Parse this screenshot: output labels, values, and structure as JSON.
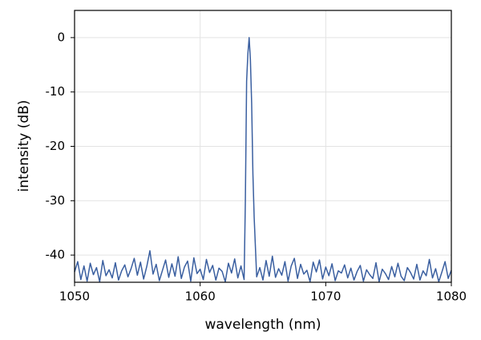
{
  "chart_data": {
    "type": "line",
    "xlabel": "wavelength (nm)",
    "ylabel": "intensity (dB)",
    "xlim": [
      1050,
      1080
    ],
    "xticks": [
      1050,
      1060,
      1070,
      1080
    ],
    "ylim": [
      -45,
      5
    ],
    "yticks": [
      0,
      -10,
      -20,
      -30,
      -40
    ],
    "grid": true,
    "x": [
      1050,
      1050.25,
      1050.5,
      1050.75,
      1051,
      1051.25,
      1051.5,
      1051.75,
      1052,
      1052.25,
      1052.5,
      1052.75,
      1053,
      1053.25,
      1053.5,
      1053.75,
      1054,
      1054.25,
      1054.5,
      1054.75,
      1055,
      1055.25,
      1055.5,
      1055.75,
      1056,
      1056.25,
      1056.5,
      1056.75,
      1057,
      1057.25,
      1057.5,
      1057.75,
      1058,
      1058.25,
      1058.5,
      1058.75,
      1059,
      1059.25,
      1059.5,
      1059.75,
      1060,
      1060.25,
      1060.5,
      1060.75,
      1061,
      1061.25,
      1061.5,
      1061.75,
      1062,
      1062.25,
      1062.5,
      1062.75,
      1063,
      1063.25,
      1063.5,
      1063.6,
      1063.7,
      1063.8,
      1063.9,
      1064,
      1064.1,
      1064.2,
      1064.3,
      1064.5,
      1064.75,
      1065,
      1065.25,
      1065.5,
      1065.75,
      1066,
      1066.25,
      1066.5,
      1066.75,
      1067,
      1067.25,
      1067.5,
      1067.75,
      1068,
      1068.25,
      1068.5,
      1068.75,
      1069,
      1069.25,
      1069.5,
      1069.75,
      1070,
      1070.25,
      1070.5,
      1070.75,
      1071,
      1071.25,
      1071.5,
      1071.75,
      1072,
      1072.25,
      1072.5,
      1072.75,
      1073,
      1073.25,
      1073.5,
      1073.75,
      1074,
      1074.25,
      1074.5,
      1074.75,
      1075,
      1075.25,
      1075.5,
      1075.75,
      1076,
      1076.25,
      1076.5,
      1076.75,
      1077,
      1077.25,
      1077.5,
      1077.75,
      1078,
      1078.25,
      1078.5,
      1078.75,
      1079,
      1079.25,
      1079.5,
      1079.75,
      1080
    ],
    "series": [
      {
        "color": "#3a5fa0",
        "values": [
          -43.1,
          -41.2,
          -44.5,
          -42.0,
          -44.8,
          -41.5,
          -43.6,
          -42.3,
          -44.9,
          -41.0,
          -43.8,
          -42.7,
          -44.2,
          -41.4,
          -44.6,
          -42.9,
          -41.8,
          -44.0,
          -42.5,
          -40.6,
          -43.7,
          -41.3,
          -44.4,
          -42.1,
          -39.2,
          -43.5,
          -41.7,
          -44.7,
          -42.8,
          -40.9,
          -44.1,
          -41.6,
          -43.9,
          -40.3,
          -44.3,
          -42.2,
          -41.1,
          -44.8,
          -40.5,
          -43.4,
          -42.6,
          -44.5,
          -40.8,
          -43.2,
          -41.9,
          -44.6,
          -42.4,
          -43.0,
          -44.9,
          -41.5,
          -43.3,
          -40.7,
          -44.2,
          -42.0,
          -44.5,
          -30,
          -8,
          -3,
          0,
          -4,
          -12,
          -25,
          -33,
          -44,
          -42.3,
          -44.6,
          -41.0,
          -43.9,
          -40.2,
          -44.1,
          -42.5,
          -43.7,
          -41.2,
          -44.8,
          -42.0,
          -40.6,
          -44.3,
          -41.7,
          -43.5,
          -42.8,
          -44.9,
          -41.3,
          -43.1,
          -40.9,
          -44.4,
          -42.2,
          -43.8,
          -41.6,
          -44.7,
          -42.9,
          -43.3,
          -41.8,
          -44.2,
          -42.4,
          -44.6,
          -43.0,
          -41.9,
          -44.8,
          -42.7,
          -43.6,
          -44.3,
          -41.4,
          -44.9,
          -42.6,
          -43.4,
          -44.5,
          -42.1,
          -44.0,
          -41.5,
          -43.9,
          -44.7,
          -42.3,
          -43.2,
          -44.4,
          -41.7,
          -44.6,
          -42.9,
          -43.8,
          -40.8,
          -44.2,
          -42.5,
          -44.9,
          -43.1,
          -41.2,
          -44.3,
          -42.8
        ]
      }
    ]
  }
}
